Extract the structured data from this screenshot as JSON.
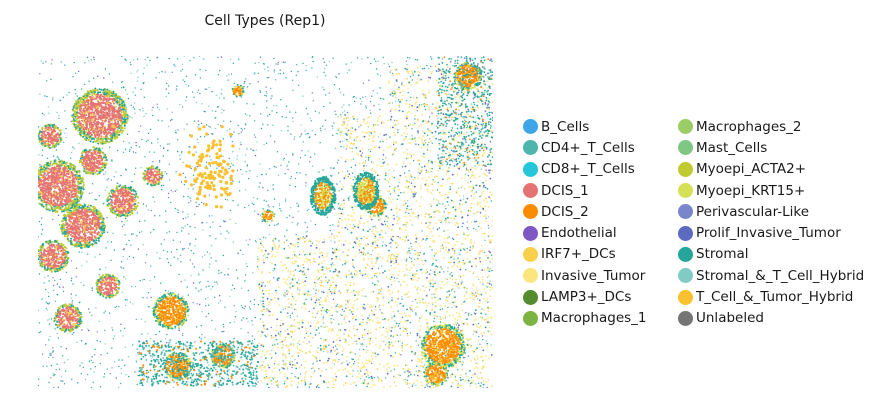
{
  "chart_data": {
    "type": "scatter",
    "title": "Cell Types (Rep1)",
    "xlabel": "",
    "ylabel": "",
    "axes_visible": false,
    "legend_position": "right",
    "categories": [
      {
        "name": "B_Cells",
        "color": "#3ea6e8"
      },
      {
        "name": "CD4+_T_Cells",
        "color": "#4db6ac"
      },
      {
        "name": "CD8+_T_Cells",
        "color": "#26c6da"
      },
      {
        "name": "DCIS_1",
        "color": "#e57373"
      },
      {
        "name": "DCIS_2",
        "color": "#fb8c00"
      },
      {
        "name": "Endothelial",
        "color": "#7e57c2"
      },
      {
        "name": "IRF7+_DCs",
        "color": "#f9d04b"
      },
      {
        "name": "Invasive_Tumor",
        "color": "#fbe57f"
      },
      {
        "name": "LAMP3+_DCs",
        "color": "#558b2f"
      },
      {
        "name": "Macrophages_1",
        "color": "#7cb342"
      },
      {
        "name": "Macrophages_2",
        "color": "#9ccc65"
      },
      {
        "name": "Mast_Cells",
        "color": "#81c784"
      },
      {
        "name": "Myoepi_ACTA2+",
        "color": "#c0ca33"
      },
      {
        "name": "Myoepi_KRT15+",
        "color": "#d4e157"
      },
      {
        "name": "Perivascular-Like",
        "color": "#7986cb"
      },
      {
        "name": "Prolif_Invasive_Tumor",
        "color": "#5c6bc0"
      },
      {
        "name": "Stromal",
        "color": "#26a69a"
      },
      {
        "name": "Stromal_&_T_Cell_Hybrid",
        "color": "#80cbc4"
      },
      {
        "name": "T_Cell_&_Tumor_Hybrid",
        "color": "#fbc02d"
      },
      {
        "name": "Unlabeled",
        "color": "#757575"
      }
    ]
  }
}
